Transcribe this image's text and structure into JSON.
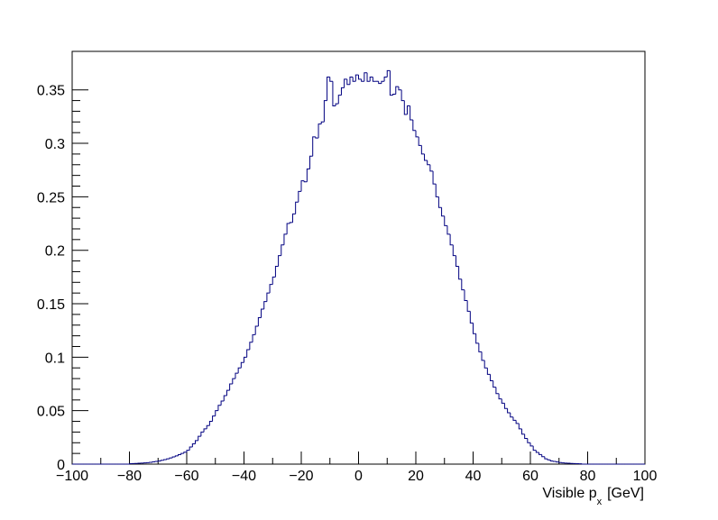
{
  "chart_data": {
    "type": "histogram",
    "x_label": [
      "Visible p",
      "x",
      "[GeV]"
    ],
    "color": "#000080",
    "bins": [
      -100,
      -99,
      -98,
      -97,
      -96,
      -95,
      -94,
      -93,
      -92,
      -91,
      -90,
      -89,
      -88,
      -87,
      -86,
      -85,
      -84,
      -83,
      -82,
      -81,
      -80,
      -79,
      -78,
      -77,
      -76,
      -75,
      -74,
      -73,
      -72,
      -71,
      -70,
      -69,
      -68,
      -67,
      -66,
      -65,
      -64,
      -63,
      -62,
      -61,
      -60,
      -59,
      -58,
      -57,
      -56,
      -55,
      -54,
      -53,
      -52,
      -51,
      -50,
      -49,
      -48,
      -47,
      -46,
      -45,
      -44,
      -43,
      -42,
      -41,
      -40,
      -39,
      -38,
      -37,
      -36,
      -35,
      -34,
      -33,
      -32,
      -31,
      -30,
      -29,
      -28,
      -27,
      -26,
      -25,
      -24,
      -23,
      -22,
      -21,
      -20,
      -19,
      -18,
      -17,
      -16,
      -15,
      -14,
      -13,
      -12,
      -11,
      -10,
      -9,
      -8,
      -7,
      -6,
      -5,
      -4,
      -3,
      -2,
      -1,
      0,
      1,
      2,
      3,
      4,
      5,
      6,
      7,
      8,
      9,
      10,
      11,
      12,
      13,
      14,
      15,
      16,
      17,
      18,
      19,
      20,
      21,
      22,
      23,
      24,
      25,
      26,
      27,
      28,
      29,
      30,
      31,
      32,
      33,
      34,
      35,
      36,
      37,
      38,
      39,
      40,
      41,
      42,
      43,
      44,
      45,
      46,
      47,
      48,
      49,
      50,
      51,
      52,
      53,
      54,
      55,
      56,
      57,
      58,
      59,
      60,
      61,
      62,
      63,
      64,
      65,
      66,
      67,
      68,
      69,
      70,
      71,
      72,
      73,
      74,
      75,
      76,
      77,
      78,
      79,
      80,
      81,
      82,
      83,
      84,
      85,
      86,
      87,
      88,
      89,
      90,
      91,
      92,
      93,
      94,
      95,
      96,
      97,
      98,
      99,
      100
    ],
    "values": [
      0,
      0,
      0,
      0,
      0,
      0,
      0,
      0,
      0,
      0,
      0,
      0,
      0,
      0,
      0,
      0,
      0,
      0,
      0,
      0,
      0.0004,
      0.0005,
      0.0006,
      0.0008,
      0.001,
      0.0012,
      0.0014,
      0.0017,
      0.0021,
      0.0025,
      0.003,
      0.0036,
      0.0042,
      0.005,
      0.0058,
      0.0067,
      0.0077,
      0.0088,
      0.01,
      0.0112,
      0.013,
      0.016,
      0.019,
      0.022,
      0.026,
      0.03,
      0.033,
      0.036,
      0.04,
      0.045,
      0.05,
      0.055,
      0.059,
      0.064,
      0.069,
      0.075,
      0.08,
      0.085,
      0.09,
      0.095,
      0.1,
      0.107,
      0.114,
      0.121,
      0.129,
      0.137,
      0.145,
      0.152,
      0.16,
      0.168,
      0.175,
      0.185,
      0.195,
      0.205,
      0.215,
      0.225,
      0.226,
      0.234,
      0.245,
      0.255,
      0.265,
      0.264,
      0.276,
      0.288,
      0.306,
      0.305,
      0.318,
      0.32,
      0.34,
      0.362,
      0.358,
      0.335,
      0.337,
      0.345,
      0.352,
      0.36,
      0.355,
      0.362,
      0.358,
      0.364,
      0.36,
      0.358,
      0.366,
      0.358,
      0.362,
      0.358,
      0.358,
      0.356,
      0.358,
      0.362,
      0.368,
      0.345,
      0.346,
      0.353,
      0.35,
      0.34,
      0.327,
      0.335,
      0.322,
      0.312,
      0.306,
      0.298,
      0.29,
      0.284,
      0.28,
      0.274,
      0.262,
      0.25,
      0.24,
      0.232,
      0.223,
      0.215,
      0.205,
      0.195,
      0.185,
      0.173,
      0.163,
      0.153,
      0.143,
      0.132,
      0.122,
      0.113,
      0.105,
      0.097,
      0.09,
      0.084,
      0.078,
      0.072,
      0.066,
      0.061,
      0.057,
      0.052,
      0.048,
      0.044,
      0.041,
      0.038,
      0.033,
      0.028,
      0.024,
      0.02,
      0.017,
      0.013,
      0.011,
      0.009,
      0.007,
      0.005,
      0.004,
      0.003,
      0.0025,
      0.002,
      0.0015,
      0.0012,
      0.001,
      0.0008,
      0.0006,
      0.0005,
      0.0004,
      0.0003,
      0,
      0,
      0,
      0,
      0,
      0,
      0,
      0,
      0,
      0,
      0,
      0,
      0,
      0,
      0,
      0,
      0,
      0,
      0,
      0,
      0,
      0
    ],
    "xlim": [
      -100,
      100
    ],
    "xticks": [
      {
        "value": -100,
        "label": "−100"
      },
      {
        "value": -80,
        "label": "−80"
      },
      {
        "value": -60,
        "label": "−60"
      },
      {
        "value": -40,
        "label": "−40"
      },
      {
        "value": -20,
        "label": "−20"
      },
      0,
      20,
      40,
      60,
      80,
      100
    ],
    "ylim": [
      0,
      0.386
    ],
    "yticks": [
      0,
      0.05,
      0.1,
      0.15,
      0.2,
      0.25,
      0.3,
      0.35
    ]
  }
}
